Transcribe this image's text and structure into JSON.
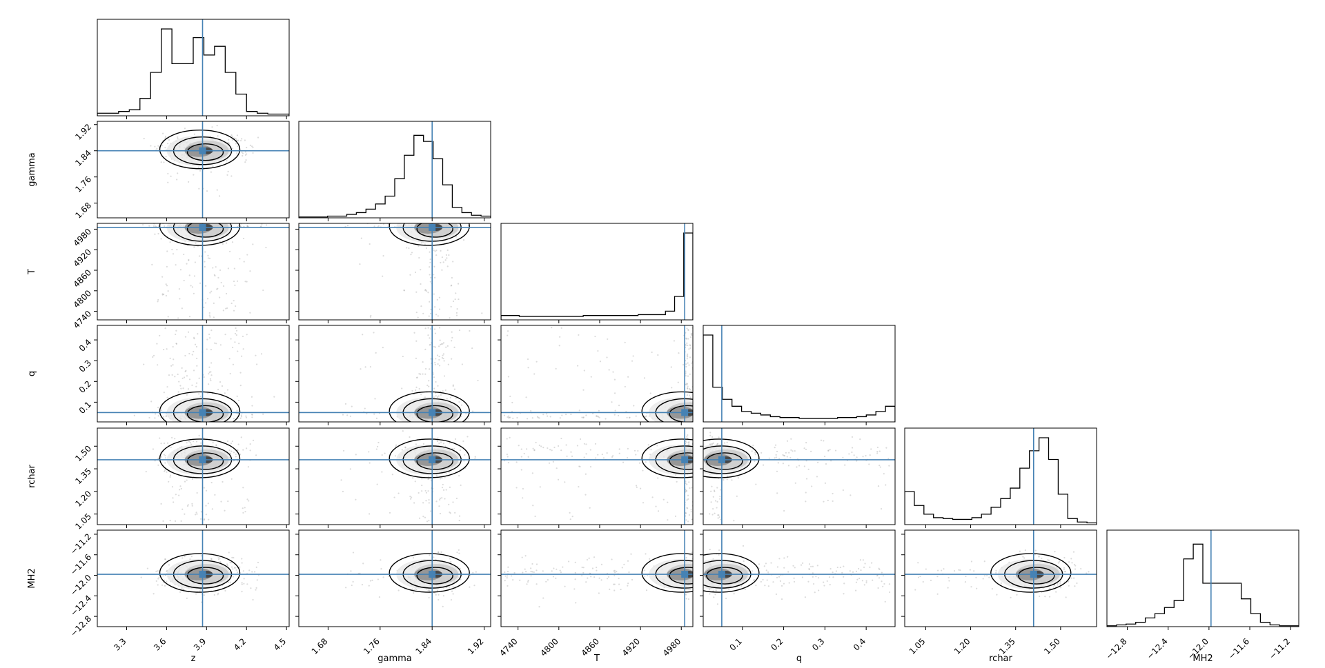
{
  "chart_data": {
    "type": "corner",
    "parameters": [
      "z",
      "gamma",
      "T",
      "q",
      "rchar",
      "MH2"
    ],
    "ranges": {
      "z": [
        3.08,
        4.52
      ],
      "gamma": [
        1.635,
        1.93
      ],
      "T": [
        4715,
        4997
      ],
      "q": [
        0.005,
        0.47
      ],
      "rchar": [
        0.98,
        1.62
      ],
      "MH2": [
        -13.0,
        -11.12
      ]
    },
    "ticks": {
      "z": [
        3.3,
        3.6,
        3.9,
        4.2,
        4.5
      ],
      "gamma": [
        1.68,
        1.76,
        1.84,
        1.92
      ],
      "T": [
        4740,
        4800,
        4860,
        4920,
        4980
      ],
      "q": [
        0.1,
        0.2,
        0.3,
        0.4
      ],
      "rchar": [
        1.05,
        1.2,
        1.35,
        1.5
      ],
      "MH2": [
        -12.8,
        -12.4,
        -12.0,
        -11.6,
        -11.2
      ]
    },
    "tick_labels": {
      "z": [
        "3.3",
        "3.6",
        "3.9",
        "4.2",
        "4.5"
      ],
      "gamma": [
        "1.68",
        "1.76",
        "1.84",
        "1.92"
      ],
      "T": [
        "4740",
        "4800",
        "4860",
        "4920",
        "4980"
      ],
      "q": [
        "0.1",
        "0.2",
        "0.3",
        "0.4"
      ],
      "rchar": [
        "1.05",
        "1.20",
        "1.35",
        "1.50"
      ],
      "MH2": [
        "−12.8",
        "−12.4",
        "−12.0",
        "−11.6",
        "−11.2"
      ]
    },
    "truths": {
      "z": 3.87,
      "gamma": 1.84,
      "T": 4985,
      "q": 0.05,
      "rchar": 1.41,
      "MH2": -11.98
    },
    "histograms": {
      "z": [
        0.03,
        0.03,
        0.05,
        0.07,
        0.2,
        0.5,
        1.0,
        0.6,
        0.6,
        0.9,
        0.7,
        0.8,
        0.5,
        0.25,
        0.05,
        0.03,
        0.02,
        0.02
      ],
      "gamma": [
        0.01,
        0.01,
        0.01,
        0.02,
        0.02,
        0.04,
        0.06,
        0.1,
        0.16,
        0.25,
        0.45,
        0.72,
        0.95,
        0.88,
        0.68,
        0.38,
        0.12,
        0.06,
        0.03,
        0.02
      ],
      "T": [
        0.05,
        0.05,
        0.04,
        0.04,
        0.04,
        0.04,
        0.04,
        0.04,
        0.04,
        0.05,
        0.05,
        0.05,
        0.05,
        0.05,
        0.05,
        0.06,
        0.06,
        0.06,
        0.1,
        0.27,
        1.0
      ],
      "q": [
        1.0,
        0.4,
        0.26,
        0.18,
        0.12,
        0.1,
        0.08,
        0.06,
        0.05,
        0.05,
        0.04,
        0.04,
        0.04,
        0.04,
        0.05,
        0.05,
        0.06,
        0.08,
        0.12,
        0.18
      ],
      "rchar": [
        0.38,
        0.22,
        0.12,
        0.08,
        0.07,
        0.06,
        0.06,
        0.08,
        0.12,
        0.2,
        0.3,
        0.42,
        0.65,
        0.85,
        1.0,
        0.75,
        0.35,
        0.07,
        0.03,
        0.02
      ],
      "MH2": [
        0.01,
        0.02,
        0.03,
        0.05,
        0.1,
        0.15,
        0.22,
        0.3,
        0.78,
        0.95,
        0.5,
        0.5,
        0.5,
        0.5,
        0.32,
        0.15,
        0.05,
        0.02,
        0.01,
        0.01
      ]
    },
    "tick_rotation_deg": 45,
    "truth_color": "#4682b4",
    "hist_color": "#000000",
    "contour_color": "#000000",
    "grid": false,
    "legend": "none"
  }
}
